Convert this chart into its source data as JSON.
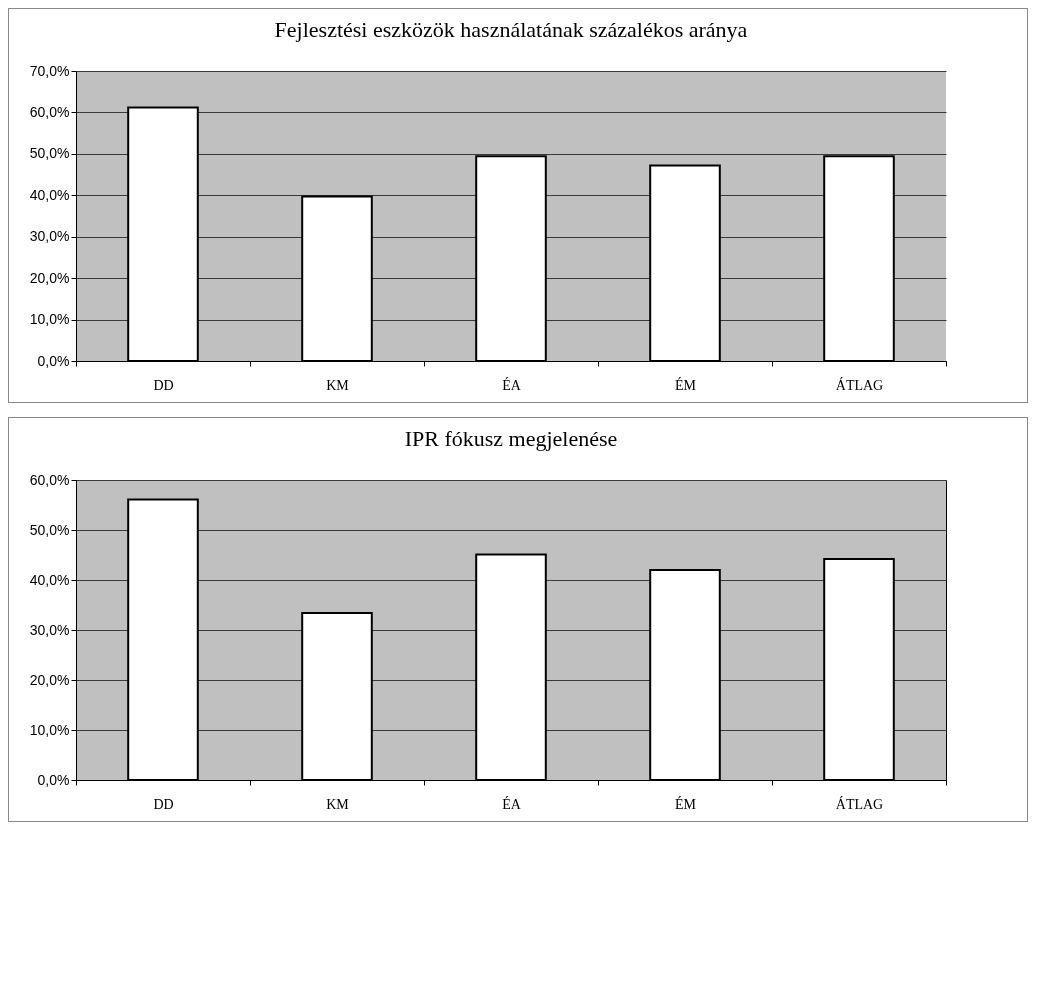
{
  "chart_data": [
    {
      "type": "bar",
      "title": "Fejlesztési eszközök használatának százalékos aránya",
      "categories": [
        "DD",
        "KM",
        "ÉA",
        "ÉM",
        "ÁTLAG"
      ],
      "values": [
        61.2,
        39.7,
        49.4,
        47.2,
        49.4
      ],
      "color": "#ffffff",
      "ylim": [
        0,
        70
      ],
      "yticks": [
        {
          "value": 0,
          "label": "0,0%"
        },
        {
          "value": 10,
          "label": "10,0%"
        },
        {
          "value": 20,
          "label": "20,0%"
        },
        {
          "value": 30,
          "label": "30,0%"
        },
        {
          "value": 40,
          "label": "40,0%"
        },
        {
          "value": 50,
          "label": "50,0%"
        },
        {
          "value": 60,
          "label": "60,0%"
        },
        {
          "value": 70,
          "label": "70,0%"
        }
      ],
      "grid": "y"
    },
    {
      "type": "bar",
      "title": "IPR fókusz megjelenése",
      "categories": [
        "DD",
        "KM",
        "ÉA",
        "ÉM",
        "ÁTLAG"
      ],
      "values": [
        56.1,
        33.4,
        45.1,
        42,
        44.2
      ],
      "color": "#ffffff",
      "ylim": [
        0,
        60
      ],
      "yticks": [
        {
          "value": 0,
          "label": "0,0%"
        },
        {
          "value": 10,
          "label": "10,0%"
        },
        {
          "value": 20,
          "label": "20,0%"
        },
        {
          "value": 30,
          "label": "30,0%"
        },
        {
          "value": 40,
          "label": "40,0%"
        },
        {
          "value": 50,
          "label": "50,0%"
        },
        {
          "value": 60,
          "label": "60,0%"
        }
      ],
      "grid": "y"
    }
  ]
}
